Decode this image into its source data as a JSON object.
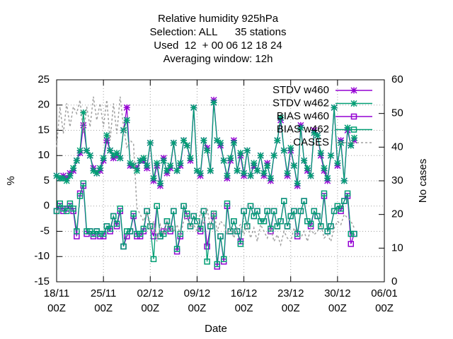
{
  "chart_data": {
    "type": "line",
    "title": [
      "Relative humidity 925hPa",
      "Selection: ALL      35 stations",
      "Used  12  + 00 06 12 18 24",
      "Averaging window: 12h"
    ],
    "xlabel": "Date",
    "ylabel": "%",
    "y2label": "No cases",
    "xlim": [
      "18/11 00Z",
      "06/01 00Z"
    ],
    "xticks": [
      {
        "value": "18/11 00Z",
        "label": [
          "18/11",
          "00Z"
        ]
      },
      {
        "value": "25/11 00Z",
        "label": [
          "25/11",
          "00Z"
        ]
      },
      {
        "value": "02/12 00Z",
        "label": [
          "02/12",
          "00Z"
        ]
      },
      {
        "value": "09/12 00Z",
        "label": [
          "09/12",
          "00Z"
        ]
      },
      {
        "value": "16/12 00Z",
        "label": [
          "16/12",
          "00Z"
        ]
      },
      {
        "value": "23/12 00Z",
        "label": [
          "23/12",
          "00Z"
        ]
      },
      {
        "value": "30/12 00Z",
        "label": [
          "30/12",
          "00Z"
        ]
      },
      {
        "value": "06/01 00Z",
        "label": [
          "06/01",
          "00Z"
        ]
      }
    ],
    "ylim": [
      -15,
      25
    ],
    "yticks": [
      -15,
      -10,
      -5,
      0,
      5,
      10,
      15,
      20,
      25
    ],
    "y2lim": [
      0,
      60
    ],
    "y2ticks": [
      0,
      10,
      20,
      30,
      40,
      50,
      60
    ],
    "grid": true,
    "legend": "upper right",
    "x": [
      "18/11 00Z",
      "18/11 12Z",
      "19/11 00Z",
      "19/11 12Z",
      "20/11 00Z",
      "20/11 12Z",
      "21/11 00Z",
      "21/11 12Z",
      "22/11 00Z",
      "22/11 12Z",
      "23/11 00Z",
      "23/11 12Z",
      "24/11 00Z",
      "24/11 12Z",
      "25/11 00Z",
      "25/11 12Z",
      "26/11 00Z",
      "26/11 12Z",
      "27/11 00Z",
      "27/11 12Z",
      "28/11 00Z",
      "28/11 12Z",
      "29/11 00Z",
      "29/11 12Z",
      "30/11 00Z",
      "30/11 12Z",
      "01/12 00Z",
      "01/12 12Z",
      "02/12 00Z",
      "02/12 12Z",
      "03/12 00Z",
      "03/12 12Z",
      "04/12 00Z",
      "04/12 12Z",
      "05/12 00Z",
      "05/12 12Z",
      "06/12 00Z",
      "06/12 12Z",
      "07/12 00Z",
      "07/12 12Z",
      "08/12 00Z",
      "08/12 12Z",
      "09/12 00Z",
      "09/12 12Z",
      "10/12 00Z",
      "10/12 12Z",
      "11/12 00Z",
      "11/12 12Z",
      "12/12 00Z",
      "12/12 12Z",
      "13/12 00Z",
      "13/12 12Z",
      "14/12 00Z",
      "14/12 12Z",
      "15/12 00Z",
      "15/12 12Z",
      "16/12 00Z",
      "16/12 12Z",
      "17/12 00Z",
      "17/12 12Z",
      "18/12 00Z",
      "18/12 12Z",
      "19/12 00Z",
      "19/12 12Z",
      "20/12 00Z",
      "20/12 12Z",
      "21/12 00Z",
      "21/12 12Z",
      "22/12 00Z",
      "22/12 12Z",
      "23/12 00Z",
      "23/12 12Z",
      "24/12 00Z",
      "24/12 12Z",
      "25/12 00Z",
      "25/12 12Z",
      "26/12 00Z",
      "26/12 12Z",
      "27/12 00Z",
      "27/12 12Z",
      "28/12 00Z",
      "28/12 12Z",
      "29/12 00Z",
      "29/12 12Z",
      "30/12 00Z",
      "30/12 12Z",
      "31/12 00Z",
      "31/12 12Z",
      "01/01 00Z",
      "01/01 12Z"
    ],
    "series": [
      {
        "name": "STDV w460",
        "color": "#9400d3",
        "marker": "star",
        "values": [
          6,
          5.5,
          6,
          5.5,
          6.5,
          7,
          9,
          10.5,
          16,
          11,
          10,
          7.5,
          6.5,
          7,
          9,
          13,
          11,
          9.5,
          10,
          9.5,
          15,
          19.5,
          8,
          8,
          7.5,
          9,
          9,
          7.5,
          12.5,
          5,
          8,
          4,
          9.5,
          6.5,
          7.5,
          12.5,
          7,
          8,
          13,
          12,
          9,
          19.5,
          7,
          6,
          13,
          11.5,
          7,
          21,
          13,
          12,
          9,
          5.5,
          9,
          13,
          7,
          10,
          6,
          11,
          6,
          8,
          7,
          10,
          6,
          8.5,
          5,
          10,
          13,
          17,
          11,
          6,
          11,
          8,
          4,
          16,
          9,
          7,
          6,
          15,
          14,
          10,
          7,
          5,
          10,
          19.5,
          8,
          13,
          5,
          15,
          12,
          13
        ]
      },
      {
        "name": "STDV w462",
        "color": "#009e73",
        "marker": "star",
        "values": [
          6,
          5.5,
          5.5,
          5,
          6,
          7.5,
          9,
          11,
          18.5,
          11,
          10,
          7,
          6.5,
          7.5,
          9.5,
          14,
          11,
          10,
          10.5,
          9.5,
          15,
          17,
          8.5,
          8,
          7,
          9,
          9.5,
          8,
          12.5,
          5.5,
          8.5,
          4.5,
          9,
          7,
          8,
          12.5,
          7,
          8.5,
          13,
          12,
          9.5,
          19.5,
          7,
          6.5,
          13,
          11,
          7,
          20.5,
          13,
          12.5,
          9,
          6,
          9.5,
          12.5,
          7,
          10.5,
          6.5,
          11,
          6,
          8.5,
          7,
          10,
          6.5,
          8,
          5.5,
          10,
          13,
          17.5,
          11,
          6.5,
          11.5,
          8,
          4.5,
          15.5,
          9,
          7.5,
          6,
          14.5,
          14,
          10.5,
          7.5,
          5.5,
          10,
          19.5,
          8.5,
          12.5,
          5,
          15.5,
          12,
          13.5
        ]
      },
      {
        "name": "BIAS w460",
        "color": "#9400d3",
        "marker": "square",
        "values": [
          -1,
          0,
          -1,
          -0.5,
          0,
          -1,
          -6,
          2.5,
          4,
          -5.5,
          -5,
          -6,
          -5,
          -6,
          -6,
          -4,
          -5,
          -2,
          -4,
          -1,
          -8,
          -6,
          -5,
          -2,
          -6,
          -6,
          -5,
          -1,
          -4,
          -6,
          0,
          -6,
          -5,
          -3,
          -5,
          -1,
          -9,
          -6,
          0,
          -2,
          -4,
          -2,
          -3,
          -5,
          -1,
          -8,
          -4,
          -2,
          -12,
          -6,
          -11,
          0,
          -5,
          -3,
          -5,
          -7,
          -1,
          -4,
          0,
          -2,
          -1,
          -3,
          -3,
          -1,
          -5,
          -1,
          -4,
          -3,
          1,
          -4,
          -2,
          -1,
          -6,
          -1,
          1,
          -3,
          -4,
          -1,
          -2,
          -4,
          2,
          -5,
          -4,
          -1,
          0,
          -1,
          1,
          2,
          -7.5,
          -5.5
        ]
      },
      {
        "name": "BIAS w462",
        "color": "#009e73",
        "marker": "square",
        "values": [
          -1,
          0.5,
          -0.5,
          -1,
          0.5,
          -0.5,
          -5,
          2,
          4.5,
          -5,
          -5,
          -5.5,
          -5,
          -5.5,
          -5.5,
          -4,
          -4.5,
          -2,
          -3.5,
          -0.5,
          -8,
          -5,
          -5,
          -1.5,
          -5.5,
          -5.5,
          -4.5,
          -1,
          -4,
          -10.5,
          0,
          -6,
          -5.5,
          -3,
          -4.5,
          -1,
          -8.5,
          -5.5,
          0,
          -1.5,
          -4,
          -2,
          -3,
          -4.5,
          -1,
          -11,
          -4,
          -1.5,
          -11.5,
          -6,
          -10.5,
          0.5,
          -5,
          -3,
          -5,
          -7.5,
          -1,
          -4,
          0,
          -2,
          -1,
          -3,
          -3,
          -1,
          -4.5,
          -1,
          -4,
          -3,
          1,
          -4,
          -2,
          -1,
          -5.5,
          -1,
          1,
          -3,
          -3.5,
          -1,
          -2,
          -4,
          2.5,
          -5,
          -4,
          -1,
          0,
          -0.5,
          1,
          2.5,
          -5.5,
          -5.5
        ]
      },
      {
        "name": "CASES",
        "color": "#a0a0a0",
        "dash": true,
        "axis": "y2",
        "values": [
          40,
          52,
          44,
          53,
          46,
          52,
          50,
          54,
          44,
          52,
          46,
          55,
          48,
          53,
          46,
          54,
          42,
          53,
          44,
          55,
          46,
          40,
          42,
          41,
          22,
          20,
          18,
          21,
          15,
          18,
          12,
          17,
          14,
          18,
          16,
          15,
          17,
          14,
          18,
          20,
          16,
          17,
          15,
          21,
          17,
          22,
          16,
          21,
          15,
          18,
          17,
          14,
          16,
          13,
          16,
          17,
          14,
          17,
          13,
          16,
          12,
          17,
          15,
          13,
          16,
          12,
          14,
          11,
          15,
          13,
          12,
          16,
          14,
          13,
          15,
          12,
          16,
          14,
          15,
          17,
          13,
          14,
          12,
          16,
          18,
          17,
          20,
          19,
          18,
          16
        ]
      }
    ]
  }
}
